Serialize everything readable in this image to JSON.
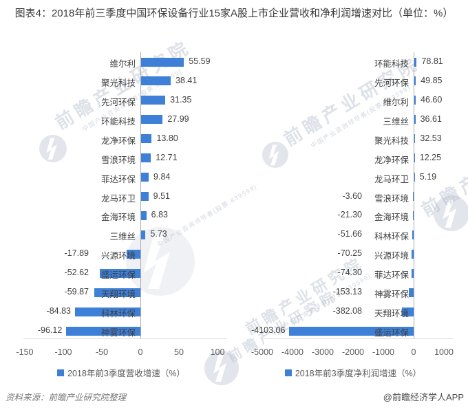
{
  "title": "图表4：2018年前三季度中国环保设备行业15家A股上市企业营收和净利润增速对比（单位：%）",
  "footer": {
    "source": "资料来源：前瞻产业研究院整理",
    "credit": "@前瞻经济学人APP"
  },
  "watermark": {
    "brand_big": "前瞻产业研究院",
    "brand_small": "中国产业咨询领导者(股票:839599)"
  },
  "colors": {
    "bar": "#3E80D8",
    "zero_axis": "#A9A9A9",
    "baseline": "#D9D9D9",
    "label_text": "#3F3F3F",
    "tick_text": "#595959",
    "watermark": "#AEB8C8"
  },
  "chart_data": [
    {
      "type": "bar",
      "orientation": "horizontal",
      "legend": "2018年前3季度营收增速（%）",
      "categories": [
        "维尔利",
        "聚光科技",
        "先河环保",
        "环能科技",
        "龙净环保",
        "雪浪环境",
        "菲达环保",
        "龙马环卫",
        "金海环境",
        "三维丝",
        "兴源环境",
        "盛运环保",
        "天翔环境",
        "科林环保",
        "神雾环保"
      ],
      "values": [
        55.59,
        38.41,
        31.35,
        27.99,
        13.8,
        12.71,
        9.84,
        9.51,
        6.83,
        5.73,
        -17.89,
        -52.62,
        -59.87,
        -84.83,
        -96.12
      ],
      "xlim": [
        -150,
        100
      ],
      "xticks": [
        -150,
        -100,
        -50,
        0,
        50,
        100
      ],
      "grid": false,
      "legend_position": "bottom"
    },
    {
      "type": "bar",
      "orientation": "horizontal",
      "legend": "2018年前3季度净利润增速（%）",
      "categories": [
        "环能科技",
        "先河环保",
        "维尔利",
        "三维丝",
        "聚光科技",
        "龙净环保",
        "龙马环卫",
        "雪浪环境",
        "金海环境",
        "科林环保",
        "兴源环境",
        "菲达环保",
        "神雾环保",
        "天翔环境",
        "盛运环保"
      ],
      "values": [
        78.81,
        49.85,
        46.6,
        36.61,
        32.53,
        12.25,
        5.19,
        -3.6,
        -21.3,
        -51.66,
        -70.25,
        -74.3,
        -153.13,
        -382.08,
        -4103.06
      ],
      "xlim": [
        -5000,
        1000
      ],
      "xticks": [
        -5000,
        -4000,
        -3000,
        -2000,
        -1000,
        0,
        1000
      ],
      "grid": false,
      "legend_position": "bottom"
    }
  ]
}
